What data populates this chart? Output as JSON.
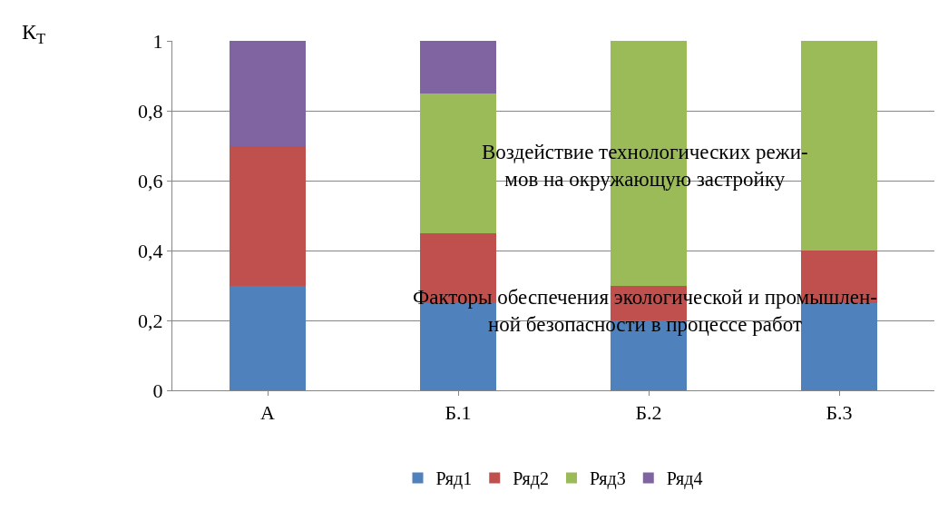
{
  "chart_data": {
    "type": "bar",
    "stacked": true,
    "ylabel": "К$_{Т}$",
    "categories": [
      "А",
      "Б.1",
      "Б.2",
      "Б.3"
    ],
    "series": [
      {
        "name": "Ряд1",
        "color": "#4f81bd",
        "values": [
          0.3,
          0.25,
          0.2,
          0.25
        ]
      },
      {
        "name": "Ряд2",
        "color": "#c0504d",
        "values": [
          0.4,
          0.2,
          0.1,
          0.15
        ]
      },
      {
        "name": "Ряд3",
        "color": "#9bbb59",
        "values": [
          0,
          0.4,
          0.7,
          0.6
        ]
      },
      {
        "name": "Ряд4",
        "color": "#8064a2",
        "values": [
          0.3,
          0.15,
          0,
          0
        ]
      }
    ],
    "ylim": [
      0,
      1
    ],
    "yticks": [
      0,
      {
        "value": 0.2,
        "label": "0,2"
      },
      {
        "value": 0.4,
        "label": "0,4"
      },
      {
        "value": 0.6,
        "label": "0,6"
      },
      {
        "value": 0.8,
        "label": "0,8"
      },
      1
    ],
    "grid": "y",
    "legend": "bottom",
    "annotations": [
      "Воздействие технологических режи-\nмов на окружающую застройку",
      "Факторы обеспечения экологической и промышлен-\nной безопасности в процессе работ"
    ]
  }
}
